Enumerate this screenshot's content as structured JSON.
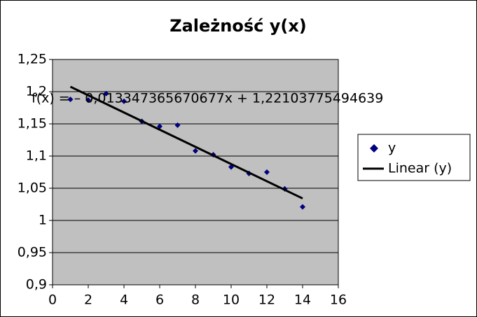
{
  "chart_data": {
    "type": "scatter",
    "title": "Zależność y(x)",
    "x": [
      1,
      2,
      3,
      4,
      5,
      6,
      7,
      8,
      9,
      10,
      11,
      12,
      13,
      14
    ],
    "series": [
      {
        "name": "y",
        "color": "#000080",
        "values": [
          1.188,
          1.187,
          1.197,
          1.185,
          1.154,
          1.146,
          1.148,
          1.108,
          1.102,
          1.083,
          1.073,
          1.075,
          1.049,
          1.021
        ]
      }
    ],
    "trendline": {
      "name": "Linear (y)",
      "color": "#000000",
      "slope": -0.013347365670677,
      "intercept": 1.22103775494639,
      "equation": "f(x) = – 0,013347365670677x + 1,22103775494639"
    },
    "xlim": [
      0,
      16
    ],
    "xticks": [
      0,
      2,
      4,
      6,
      8,
      10,
      12,
      14,
      16
    ],
    "ylim": [
      0.9,
      1.25
    ],
    "yticks": [
      {
        "value": 0.9,
        "label": "0,9"
      },
      {
        "value": 0.95,
        "label": "0,95"
      },
      1,
      {
        "value": 1.05,
        "label": "1,05"
      },
      {
        "value": 1.1,
        "label": "1,1"
      },
      {
        "value": 1.15,
        "label": "1,15"
      },
      {
        "value": 1.2,
        "label": "1,2"
      },
      {
        "value": 1.25,
        "label": "1,25"
      }
    ],
    "grid": true,
    "plot_background": "#c0c0c0",
    "legend": "right"
  }
}
